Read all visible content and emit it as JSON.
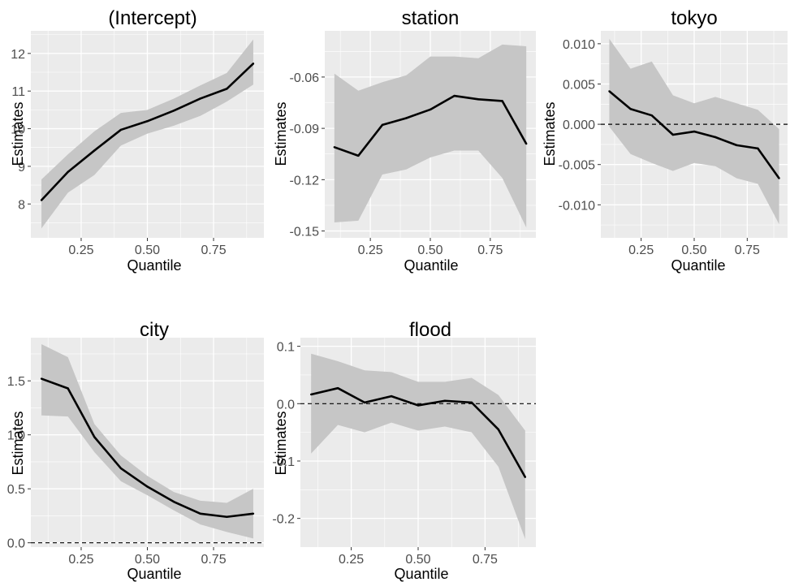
{
  "colors": {
    "panel_background": "#EBEBEB",
    "grid_major": "#FFFFFF",
    "ribbon": "#C6C6C6",
    "line": "#000000",
    "reference_line": "#000000"
  },
  "chart_data": [
    {
      "type": "line",
      "title": "(Intercept)",
      "xlabel": "Quantile",
      "ylabel": "Estimates",
      "xlim": [
        0.06,
        0.94
      ],
      "ylim": [
        7.1,
        12.6
      ],
      "xticks": [
        0.25,
        0.5,
        0.75
      ],
      "xtick_labels": [
        "0.25",
        "0.50",
        "0.75"
      ],
      "yticks": [
        8,
        9,
        10,
        11,
        12
      ],
      "ytick_labels": [
        "8",
        "9",
        "10",
        "11",
        "12"
      ],
      "x": [
        0.1,
        0.2,
        0.3,
        0.4,
        0.5,
        0.6,
        0.7,
        0.8,
        0.9
      ],
      "estimate": [
        8.1,
        8.85,
        9.42,
        9.97,
        10.2,
        10.48,
        10.8,
        11.06,
        11.73
      ],
      "lower": [
        7.35,
        8.3,
        8.77,
        9.55,
        9.87,
        10.08,
        10.34,
        10.72,
        11.17
      ],
      "upper": [
        8.65,
        9.32,
        9.93,
        10.42,
        10.5,
        10.8,
        11.15,
        11.48,
        12.37
      ],
      "reference_line": null,
      "grid": true
    },
    {
      "type": "line",
      "title": "station",
      "xlabel": "Quantile",
      "ylabel": "Estimates",
      "xlim": [
        0.06,
        0.94
      ],
      "ylim": [
        -0.154,
        -0.033
      ],
      "xticks": [
        0.25,
        0.5,
        0.75
      ],
      "xtick_labels": [
        "0.25",
        "0.50",
        "0.75"
      ],
      "yticks": [
        -0.15,
        -0.12,
        -0.09,
        -0.06
      ],
      "ytick_labels": [
        "-0.15",
        "-0.12",
        "-0.09",
        "-0.06"
      ],
      "x": [
        0.1,
        0.2,
        0.3,
        0.4,
        0.5,
        0.6,
        0.7,
        0.8,
        0.9
      ],
      "estimate": [
        -0.101,
        -0.106,
        -0.088,
        -0.084,
        -0.079,
        -0.071,
        -0.073,
        -0.074,
        -0.099
      ],
      "lower": [
        -0.145,
        -0.144,
        -0.117,
        -0.114,
        -0.107,
        -0.103,
        -0.103,
        -0.119,
        -0.148
      ],
      "upper": [
        -0.058,
        -0.068,
        -0.063,
        -0.059,
        -0.048,
        -0.048,
        -0.049,
        -0.041,
        -0.042
      ],
      "reference_line": null,
      "grid": true
    },
    {
      "type": "line",
      "title": "tokyo",
      "xlabel": "Quantile",
      "ylabel": "Estimates",
      "xlim": [
        0.06,
        0.94
      ],
      "ylim": [
        -0.0141,
        0.0116
      ],
      "xticks": [
        0.25,
        0.5,
        0.75
      ],
      "xtick_labels": [
        "0.25",
        "0.50",
        "0.75"
      ],
      "yticks": [
        -0.01,
        -0.005,
        0.0,
        0.005,
        0.01
      ],
      "ytick_labels": [
        "-0.010",
        "-0.005",
        "0.000",
        "0.005",
        "0.010"
      ],
      "x": [
        0.1,
        0.2,
        0.3,
        0.4,
        0.5,
        0.6,
        0.7,
        0.8,
        0.9
      ],
      "estimate": [
        0.0041,
        0.0019,
        0.0011,
        -0.0013,
        -0.0009,
        -0.0016,
        -0.0026,
        -0.003,
        -0.0067
      ],
      "lower": [
        -0.0003,
        -0.0037,
        -0.0048,
        -0.0058,
        -0.0048,
        -0.0052,
        -0.0067,
        -0.0074,
        -0.0124
      ],
      "upper": [
        0.0106,
        0.0069,
        0.0078,
        0.0036,
        0.0026,
        0.0034,
        0.0026,
        0.0018,
        -0.0006
      ],
      "reference_line": 0,
      "grid": true
    },
    {
      "type": "line",
      "title": "city",
      "xlabel": "Quantile",
      "ylabel": "Estimates",
      "xlim": [
        0.06,
        0.94
      ],
      "ylim": [
        -0.04,
        1.9
      ],
      "xticks": [
        0.25,
        0.5,
        0.75
      ],
      "xtick_labels": [
        "0.25",
        "0.50",
        "0.75"
      ],
      "yticks": [
        0.0,
        0.5,
        1.0,
        1.5
      ],
      "ytick_labels": [
        "0.0",
        "0.5",
        "1.0",
        "1.5"
      ],
      "x": [
        0.1,
        0.2,
        0.3,
        0.4,
        0.5,
        0.6,
        0.7,
        0.8,
        0.9
      ],
      "estimate": [
        1.52,
        1.43,
        0.98,
        0.69,
        0.52,
        0.38,
        0.27,
        0.24,
        0.27
      ],
      "lower": [
        1.18,
        1.17,
        0.84,
        0.57,
        0.44,
        0.3,
        0.17,
        0.1,
        0.04
      ],
      "upper": [
        1.84,
        1.72,
        1.1,
        0.81,
        0.62,
        0.47,
        0.39,
        0.37,
        0.5
      ],
      "reference_line": 0,
      "grid": true
    },
    {
      "type": "line",
      "title": "flood",
      "xlabel": "Quantile",
      "ylabel": "Estimates",
      "xlim": [
        0.06,
        0.94
      ],
      "ylim": [
        -0.25,
        0.115
      ],
      "xticks": [
        0.25,
        0.5,
        0.75
      ],
      "xtick_labels": [
        "0.25",
        "0.50",
        "0.75"
      ],
      "yticks": [
        -0.2,
        -0.1,
        0.0,
        0.1
      ],
      "ytick_labels": [
        "-0.2",
        "-0.1",
        "0.0",
        "0.1"
      ],
      "x": [
        0.1,
        0.2,
        0.3,
        0.4,
        0.5,
        0.6,
        0.7,
        0.8,
        0.9
      ],
      "estimate": [
        0.016,
        0.027,
        0.002,
        0.013,
        -0.003,
        0.005,
        0.002,
        -0.045,
        -0.128
      ],
      "lower": [
        -0.087,
        -0.037,
        -0.05,
        -0.033,
        -0.047,
        -0.04,
        -0.05,
        -0.11,
        -0.236
      ],
      "upper": [
        0.087,
        0.074,
        0.058,
        0.055,
        0.038,
        0.038,
        0.045,
        0.015,
        -0.047
      ],
      "reference_line": 0,
      "grid": true
    }
  ]
}
